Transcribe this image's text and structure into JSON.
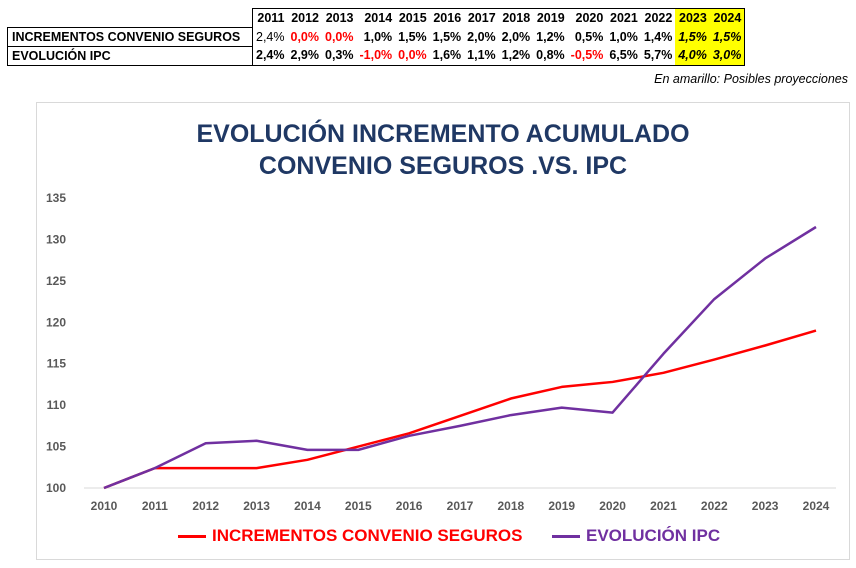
{
  "table": {
    "years": [
      "2011",
      "2012",
      "2013",
      "2014",
      "2015",
      "2016",
      "2017",
      "2018",
      "2019",
      "2020",
      "2021",
      "2022",
      "2023",
      "2024"
    ],
    "projection_years": [
      "2023",
      "2024"
    ],
    "rows": [
      {
        "label": "INCREMENTOS CONVENIO SEGUROS",
        "values": [
          "2,4%",
          "0,0%",
          "0,0%",
          "1,0%",
          "1,5%",
          "1,5%",
          "2,0%",
          "2,0%",
          "1,2%",
          "0,5%",
          "1,0%",
          "1,4%",
          "1,5%",
          "1,5%"
        ],
        "highlight_red": [
          "2012",
          "2013"
        ]
      },
      {
        "label": "EVOLUCIÓN IPC",
        "values": [
          "2,4%",
          "2,9%",
          "0,3%",
          "-1,0%",
          "0,0%",
          "1,6%",
          "1,1%",
          "1,2%",
          "0,8%",
          "-0,5%",
          "6,5%",
          "5,7%",
          "4,0%",
          "3,0%"
        ],
        "highlight_red": [
          "2014",
          "2015",
          "2020"
        ]
      }
    ],
    "note": "En amarillo: Posibles proyecciones"
  },
  "colors": {
    "red": "#ff0000",
    "purple": "#7030a0",
    "title": "#1f3864",
    "projection": "#ffff00"
  },
  "chart_data": {
    "type": "line",
    "title": "EVOLUCIÓN INCREMENTO ACUMULADO",
    "subtitle": "CONVENIO SEGUROS .VS. IPC",
    "x": [
      2010,
      2011,
      2012,
      2013,
      2014,
      2015,
      2016,
      2017,
      2018,
      2019,
      2020,
      2021,
      2022,
      2023,
      2024
    ],
    "ylim": [
      100,
      135
    ],
    "yticks": [
      100,
      105,
      110,
      115,
      120,
      125,
      130,
      135
    ],
    "grid": false,
    "legend": "bottom",
    "series": [
      {
        "name": "INCREMENTOS CONVENIO SEGUROS",
        "color": "#ff0000",
        "values": [
          100,
          102.4,
          102.4,
          102.4,
          103.4,
          105.0,
          106.6,
          108.7,
          110.8,
          112.2,
          112.8,
          113.9,
          115.5,
          117.2,
          119.0
        ]
      },
      {
        "name": "EVOLUCIÓN IPC",
        "color": "#7030a0",
        "values": [
          100,
          102.4,
          105.4,
          105.7,
          104.6,
          104.6,
          106.3,
          107.5,
          108.8,
          109.7,
          109.1,
          116.2,
          122.8,
          127.7,
          131.5
        ]
      }
    ]
  }
}
